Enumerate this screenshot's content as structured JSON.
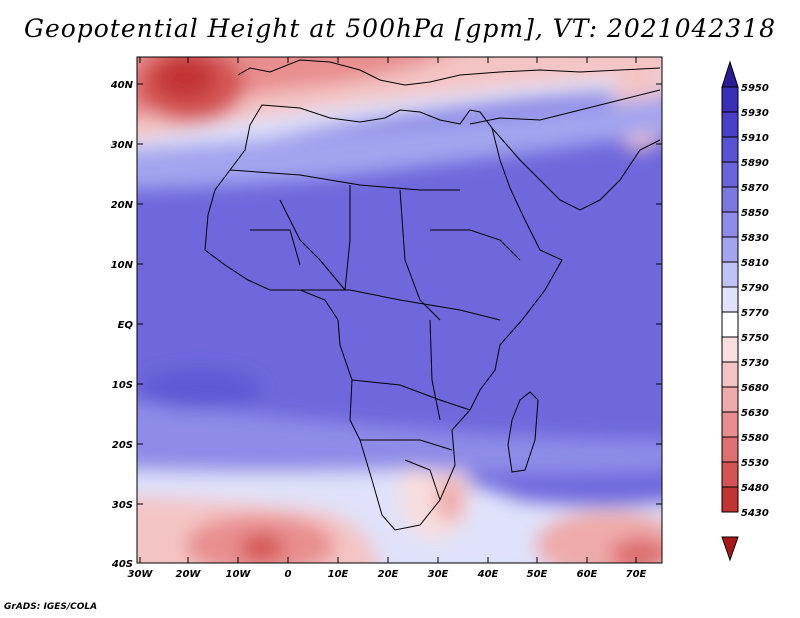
{
  "title": "Geopotential Height at 500hPa [gpm], VT: 2021042318",
  "footer": "GrADS: IGES/COLA",
  "map": {
    "lat_labels": [
      "40N",
      "30N",
      "20N",
      "10N",
      "EQ",
      "10S",
      "20S",
      "30S",
      "40S"
    ],
    "lon_labels": [
      "30W",
      "20W",
      "10W",
      "0",
      "10E",
      "20E",
      "30E",
      "40E",
      "50E",
      "60E",
      "70E"
    ],
    "region": "Africa"
  },
  "colorbar": {
    "levels": [
      "5950",
      "5930",
      "5910",
      "5890",
      "5870",
      "5850",
      "5830",
      "5810",
      "5790",
      "5770",
      "5750",
      "5730",
      "5680",
      "5630",
      "5580",
      "5530",
      "5480",
      "5430"
    ],
    "colors": [
      "#2a1c96",
      "#3a2fb8",
      "#4a40c8",
      "#5a52d4",
      "#6a64dc",
      "#7c78e2",
      "#8e8ce8",
      "#a3a4ee",
      "#bfc2f4",
      "#dfe2fa",
      "#ffffff",
      "#f8dede",
      "#f4c4c4",
      "#eeaaaa",
      "#e88e8e",
      "#de7070",
      "#d45454",
      "#c23434",
      "#a81818"
    ]
  }
}
